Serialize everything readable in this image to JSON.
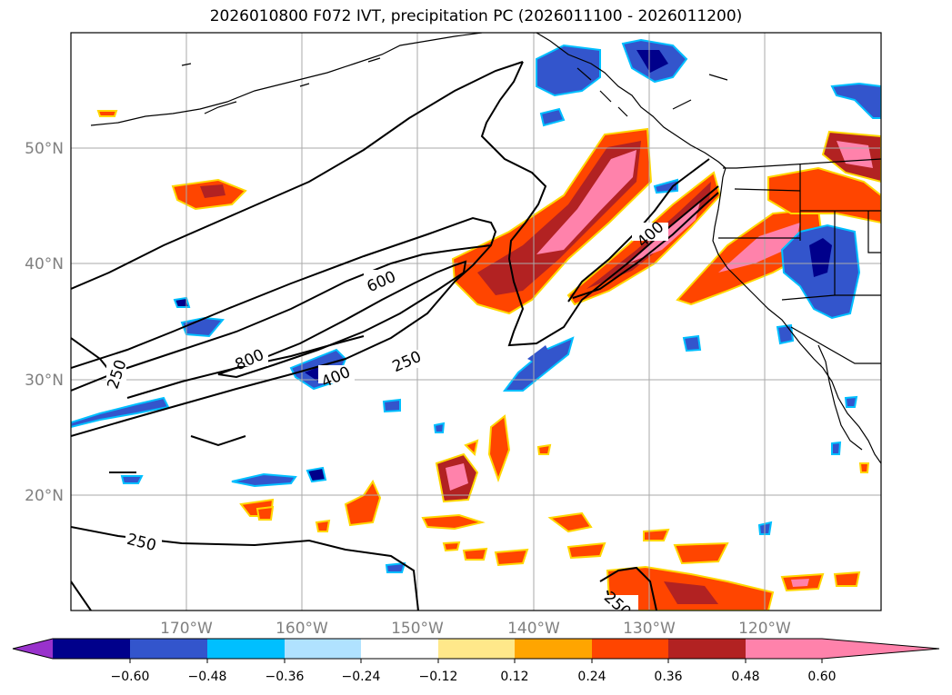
{
  "title": "2026010800 F072 IVT, precipitation PC (2026011100 - 2026011200)",
  "map": {
    "lon_labels": [
      "170°W",
      "160°W",
      "150°W",
      "140°W",
      "130°W",
      "120°W"
    ],
    "lat_labels": [
      "50°N",
      "40°N",
      "30°N",
      "20°N"
    ],
    "ivt_contour_labels": [
      "800",
      "600",
      "400",
      "250",
      "250",
      "400",
      "250",
      "250"
    ]
  },
  "colorbar": {
    "tick_labels": [
      "−0.60",
      "−0.48",
      "−0.36",
      "−0.24",
      "−0.12",
      "0.12",
      "0.24",
      "0.36",
      "0.48",
      "0.60"
    ],
    "colors": [
      "#9932cc",
      "#00008b",
      "#3355cc",
      "#00bfff",
      "#b0e2ff",
      "#ffffff",
      "#ffe88a",
      "#ffa500",
      "#ff4500",
      "#b22222",
      "#ff82ab"
    ]
  }
}
